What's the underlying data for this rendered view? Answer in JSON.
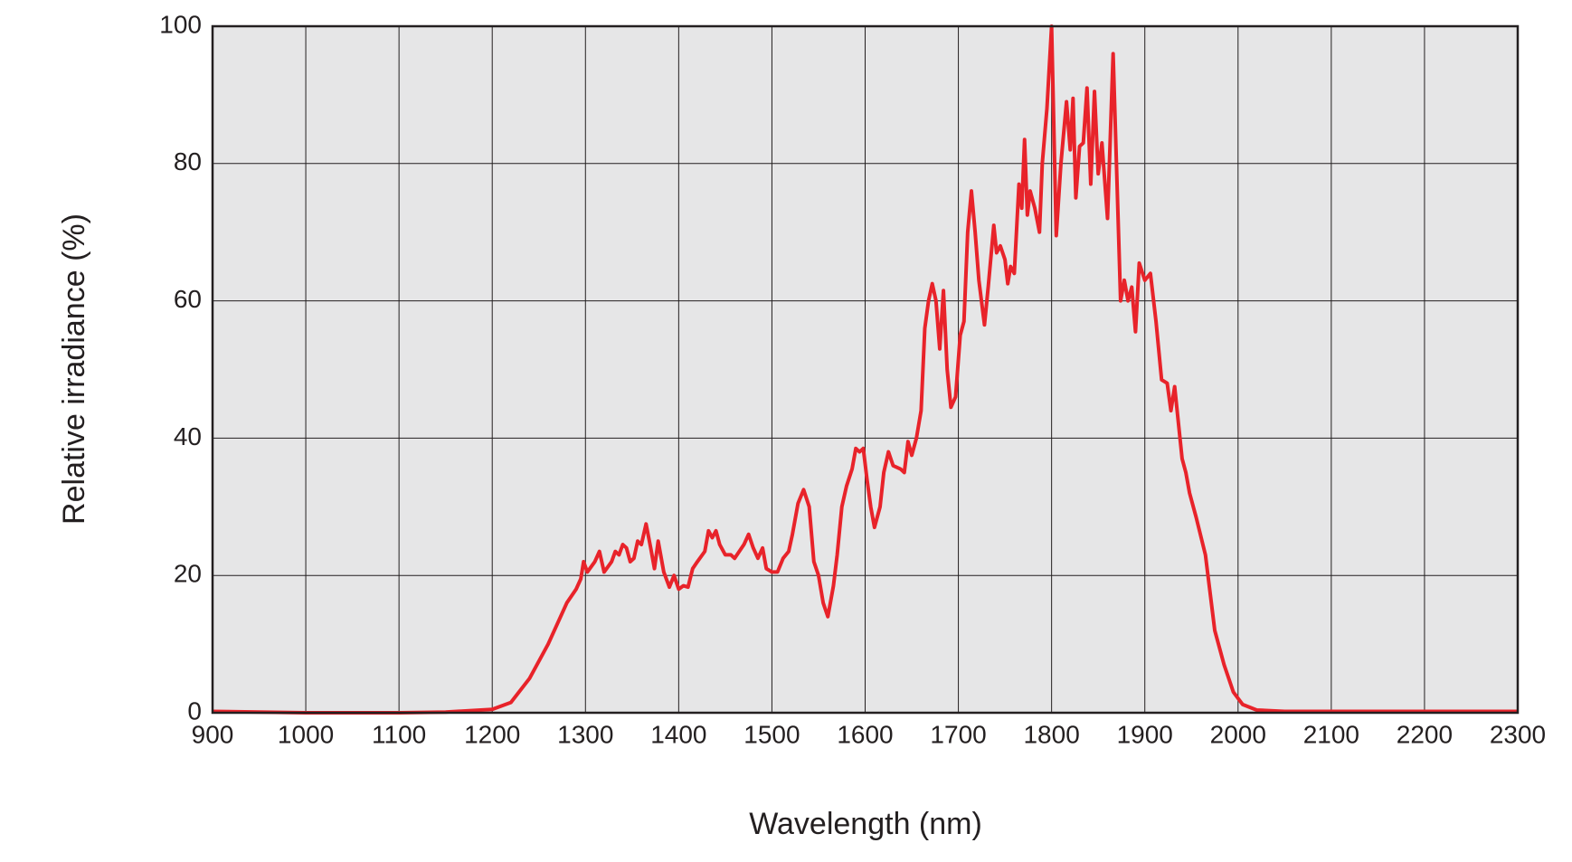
{
  "chart_data": {
    "type": "line",
    "xlabel": "Wavelength (nm)",
    "ylabel": "Relative irradiance (%)",
    "xlim": [
      900,
      2300
    ],
    "ylim": [
      0,
      100
    ],
    "xticks": [
      900,
      1000,
      1100,
      1200,
      1300,
      1400,
      1500,
      1600,
      1700,
      1800,
      1900,
      2000,
      2100,
      2200,
      2300
    ],
    "yticks": [
      0,
      20,
      40,
      60,
      80,
      100
    ],
    "grid": true,
    "series": [
      {
        "color": "#e8232a",
        "x": [
          900,
          1000,
          1100,
          1150,
          1200,
          1220,
          1240,
          1260,
          1280,
          1290,
          1295,
          1298,
          1302,
          1310,
          1315,
          1320,
          1328,
          1332,
          1336,
          1340,
          1344,
          1348,
          1352,
          1356,
          1360,
          1365,
          1370,
          1374,
          1378,
          1384,
          1390,
          1395,
          1400,
          1405,
          1410,
          1415,
          1420,
          1428,
          1432,
          1436,
          1440,
          1444,
          1450,
          1456,
          1460,
          1470,
          1475,
          1480,
          1485,
          1490,
          1494,
          1500,
          1506,
          1512,
          1518,
          1522,
          1528,
          1534,
          1540,
          1545,
          1550,
          1555,
          1560,
          1566,
          1570,
          1575,
          1580,
          1586,
          1590,
          1594,
          1598,
          1602,
          1606,
          1610,
          1616,
          1620,
          1625,
          1630,
          1638,
          1642,
          1646,
          1650,
          1655,
          1660,
          1664,
          1668,
          1672,
          1676,
          1680,
          1684,
          1688,
          1692,
          1697,
          1702,
          1706,
          1710,
          1714,
          1718,
          1722,
          1728,
          1732,
          1738,
          1741,
          1745,
          1750,
          1753,
          1756,
          1760,
          1765,
          1768,
          1771,
          1774,
          1777,
          1782,
          1787,
          1790,
          1795,
          1800,
          1805,
          1810,
          1816,
          1820,
          1823,
          1826,
          1830,
          1834,
          1838,
          1842,
          1846,
          1850,
          1854,
          1860,
          1866,
          1874,
          1878,
          1882,
          1886,
          1890,
          1894,
          1900,
          1906,
          1912,
          1918,
          1924,
          1928,
          1932,
          1940,
          1944,
          1948,
          1955,
          1965,
          1975,
          1985,
          1995,
          2005,
          2020,
          2050,
          2100,
          2300
        ],
        "values": [
          0.2,
          0,
          0,
          0.1,
          0.5,
          1.5,
          5,
          10,
          16,
          18,
          19.5,
          22,
          20.5,
          22,
          23.5,
          20.5,
          22,
          23.5,
          23,
          24.5,
          24,
          22,
          22.5,
          25,
          24.5,
          27.5,
          24,
          21,
          25,
          20.5,
          18.3,
          20,
          18,
          18.5,
          18.3,
          21,
          22,
          23.5,
          26.5,
          25.5,
          26.5,
          24.5,
          23,
          23,
          22.5,
          24.5,
          26,
          24,
          22.5,
          24,
          21,
          20.5,
          20.5,
          22.5,
          23.5,
          26,
          30.5,
          32.5,
          30,
          22,
          20,
          16,
          14,
          18.5,
          23,
          30,
          33,
          35.5,
          38.5,
          38,
          38.5,
          34,
          30,
          27,
          30,
          35,
          38,
          36,
          35.5,
          35,
          39.5,
          37.5,
          40,
          44,
          56,
          60,
          62.5,
          60,
          53,
          61.5,
          50,
          44.5,
          46,
          55,
          57,
          70,
          76,
          70,
          63,
          56.5,
          62,
          71,
          67,
          68,
          66,
          62.5,
          65,
          64,
          77,
          73.5,
          83.5,
          72.5,
          76,
          73.5,
          70,
          80,
          88,
          100,
          69.5,
          80,
          89,
          82,
          89.5,
          75,
          82.5,
          83,
          91,
          77,
          90.5,
          78.5,
          83,
          72,
          96,
          60,
          63,
          60,
          62,
          55.5,
          65.5,
          63,
          64,
          57,
          48.5,
          48,
          44,
          47.5,
          37,
          35,
          32,
          28.5,
          23,
          12,
          7,
          3,
          1.2,
          0.4,
          0.2,
          0.2,
          0.2
        ]
      }
    ]
  }
}
